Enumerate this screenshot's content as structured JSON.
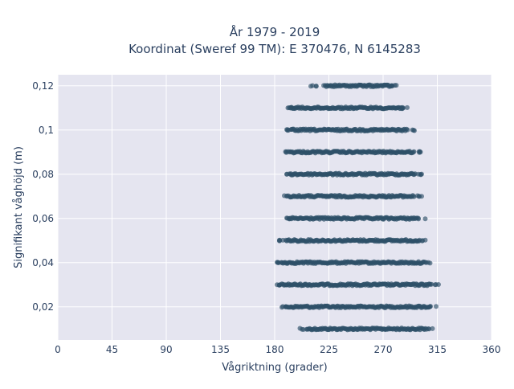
{
  "chart_data": {
    "type": "scatter",
    "title_line1": "År 1979 - 2019",
    "title_line2": "Koordinat (Sweref 99 TM): E 370476, N 6145283",
    "xlabel": "Vågriktning (grader)",
    "ylabel": "Signifikant våghöjd (m)",
    "xlim": [
      0,
      360
    ],
    "ylim": [
      0.005,
      0.125
    ],
    "x_ticks": [
      0,
      45,
      90,
      135,
      180,
      225,
      270,
      315,
      360
    ],
    "x_tick_labels": [
      "0",
      "45",
      "90",
      "135",
      "180",
      "225",
      "270",
      "315",
      "360"
    ],
    "y_ticks": [
      0.02,
      0.04,
      0.06,
      0.08,
      0.1,
      0.12
    ],
    "y_tick_labels": [
      "0,02",
      "0,04",
      "0,06",
      "0,08",
      "0,1",
      "0,12"
    ],
    "grid": true,
    "background_color": "#e5e5f0",
    "marker_color": "#2e5068",
    "series": [
      {
        "points_summary": "dense horizontal bands of observations at discrete wave heights",
        "bands": [
          {
            "y": 0.01,
            "x_min": 201,
            "x_max": 311,
            "dense_min": 208,
            "dense_max": 306
          },
          {
            "y": 0.02,
            "x_min": 186,
            "x_max": 314,
            "dense_min": 190,
            "dense_max": 308
          },
          {
            "y": 0.03,
            "x_min": 182,
            "x_max": 316,
            "dense_min": 186,
            "dense_max": 310
          },
          {
            "y": 0.04,
            "x_min": 182,
            "x_max": 309,
            "dense_min": 186,
            "dense_max": 304
          },
          {
            "y": 0.05,
            "x_min": 184,
            "x_max": 305,
            "dense_min": 190,
            "dense_max": 300
          },
          {
            "y": 0.06,
            "x_min": 190,
            "x_max": 305,
            "dense_min": 193,
            "dense_max": 298
          },
          {
            "y": 0.07,
            "x_min": 188,
            "x_max": 302,
            "dense_min": 193,
            "dense_max": 296
          },
          {
            "y": 0.08,
            "x_min": 190,
            "x_max": 302,
            "dense_min": 194,
            "dense_max": 297
          },
          {
            "y": 0.09,
            "x_min": 189,
            "x_max": 301,
            "dense_min": 193,
            "dense_max": 296
          },
          {
            "y": 0.1,
            "x_min": 190,
            "x_max": 296,
            "dense_min": 194,
            "dense_max": 290
          },
          {
            "y": 0.11,
            "x_min": 191,
            "x_max": 290,
            "dense_min": 194,
            "dense_max": 286
          },
          {
            "y": 0.12,
            "x_min": 210,
            "x_max": 281,
            "dense_min": 222,
            "dense_max": 277
          }
        ]
      }
    ]
  }
}
